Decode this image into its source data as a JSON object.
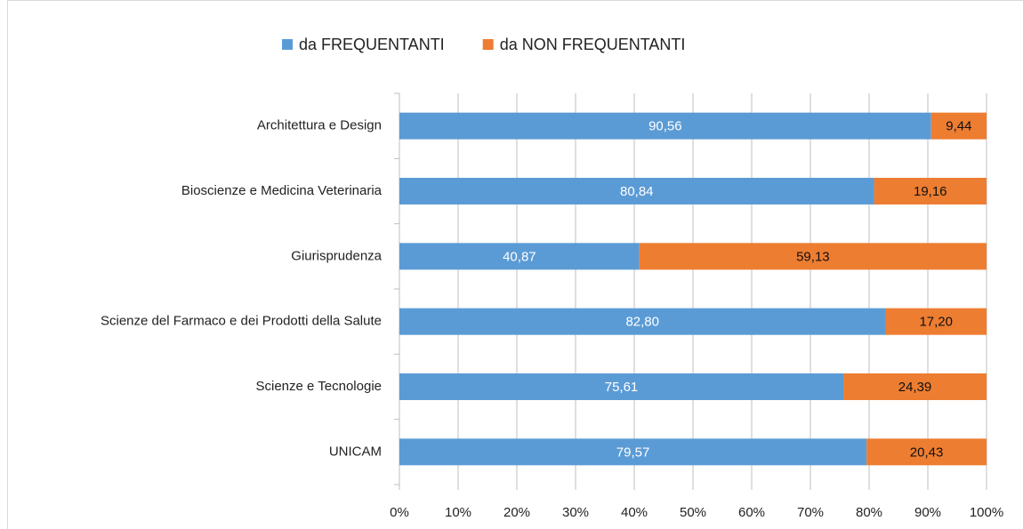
{
  "chart_data": {
    "type": "stacked-barh",
    "categories": [
      "Architettura e Design",
      "Bioscienze e Medicina Veterinaria",
      "Giurisprudenza",
      "Scienze del Farmaco e dei Prodotti della Salute",
      "Scienze e Tecnologie",
      "UNICAM"
    ],
    "series": [
      {
        "name": "da FREQUENTANTI",
        "color": "#5b9bd5",
        "values": [
          90.56,
          80.84,
          40.87,
          82.8,
          75.61,
          79.57
        ],
        "value_labels": [
          "90,56",
          "80,84",
          "40,87",
          "82,80",
          "75,61",
          "79,57"
        ]
      },
      {
        "name": "da NON FREQUENTANTI",
        "color": "#ed7d31",
        "values": [
          9.44,
          19.16,
          59.13,
          17.2,
          24.39,
          20.43
        ],
        "value_labels": [
          "9,44",
          "19,16",
          "59,13",
          "17,20",
          "24,39",
          "20,43"
        ]
      }
    ],
    "xlim": [
      0,
      100
    ],
    "xticks": [
      {
        "value": 0,
        "label": "0%"
      },
      {
        "value": 10,
        "label": "10%"
      },
      {
        "value": 20,
        "label": "20%"
      },
      {
        "value": 30,
        "label": "30%"
      },
      {
        "value": 40,
        "label": "40%"
      },
      {
        "value": 50,
        "label": "50%"
      },
      {
        "value": 60,
        "label": "60%"
      },
      {
        "value": 70,
        "label": "70%"
      },
      {
        "value": 80,
        "label": "80%"
      },
      {
        "value": 90,
        "label": "90%"
      },
      {
        "value": 100,
        "label": "100%"
      }
    ],
    "grid": true,
    "legend": "top"
  }
}
